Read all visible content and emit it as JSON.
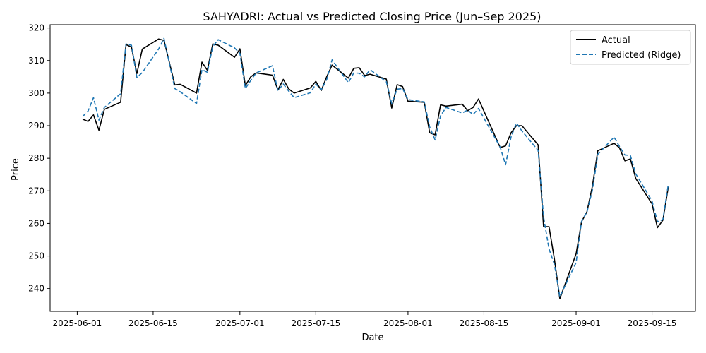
{
  "chart_data": {
    "type": "line",
    "title": "SAHYADRI: Actual vs Predicted Closing Price (Jun–Sep 2025)",
    "xlabel": "Date",
    "ylabel": "Price",
    "xlim": [
      "2025-05-27",
      "2025-09-23"
    ],
    "ylim": [
      233,
      321
    ],
    "x_ticks": [
      "2025-06-01",
      "2025-06-15",
      "2025-07-01",
      "2025-07-15",
      "2025-08-01",
      "2025-08-15",
      "2025-09-01",
      "2025-09-15"
    ],
    "y_ticks": [
      240,
      250,
      260,
      270,
      280,
      290,
      300,
      310,
      320
    ],
    "grid": false,
    "legend_position": "top-right",
    "series": [
      {
        "name": "Actual",
        "color": "#000000",
        "style": "solid",
        "points": [
          [
            "2025-06-02",
            292.0
          ],
          [
            "2025-06-03",
            291.3
          ],
          [
            "2025-06-04",
            293.3
          ],
          [
            "2025-06-05",
            288.6
          ],
          [
            "2025-06-06",
            295.0
          ],
          [
            "2025-06-09",
            297.2
          ],
          [
            "2025-06-10",
            314.9
          ],
          [
            "2025-06-11",
            314.1
          ],
          [
            "2025-06-12",
            306.0
          ],
          [
            "2025-06-13",
            313.5
          ],
          [
            "2025-06-16",
            316.6
          ],
          [
            "2025-06-17",
            316.2
          ],
          [
            "2025-06-19",
            302.5
          ],
          [
            "2025-06-20",
            302.7
          ],
          [
            "2025-06-23",
            300.0
          ],
          [
            "2025-06-24",
            309.5
          ],
          [
            "2025-06-25",
            307.0
          ],
          [
            "2025-06-26",
            315.1
          ],
          [
            "2025-06-27",
            314.7
          ],
          [
            "2025-06-30",
            311.0
          ],
          [
            "2025-07-01",
            313.6
          ],
          [
            "2025-07-02",
            302.3
          ],
          [
            "2025-07-03",
            305.0
          ],
          [
            "2025-07-04",
            306.2
          ],
          [
            "2025-07-07",
            305.5
          ],
          [
            "2025-07-08",
            301.0
          ],
          [
            "2025-07-09",
            304.2
          ],
          [
            "2025-07-10",
            301.3
          ],
          [
            "2025-07-11",
            300.0
          ],
          [
            "2025-07-14",
            301.6
          ],
          [
            "2025-07-15",
            303.6
          ],
          [
            "2025-07-16",
            300.8
          ],
          [
            "2025-07-17",
            305.0
          ],
          [
            "2025-07-18",
            308.6
          ],
          [
            "2025-07-21",
            304.6
          ],
          [
            "2025-07-22",
            307.6
          ],
          [
            "2025-07-23",
            307.8
          ],
          [
            "2025-07-24",
            305.4
          ],
          [
            "2025-07-25",
            305.8
          ],
          [
            "2025-07-28",
            304.3
          ],
          [
            "2025-07-29",
            295.4
          ],
          [
            "2025-07-30",
            302.6
          ],
          [
            "2025-07-31",
            302.0
          ],
          [
            "2025-08-01",
            297.5
          ],
          [
            "2025-08-04",
            297.2
          ],
          [
            "2025-08-05",
            287.8
          ],
          [
            "2025-08-06",
            287.2
          ],
          [
            "2025-08-07",
            296.4
          ],
          [
            "2025-08-08",
            296.0
          ],
          [
            "2025-08-11",
            296.6
          ],
          [
            "2025-08-12",
            294.6
          ],
          [
            "2025-08-13",
            295.6
          ],
          [
            "2025-08-14",
            298.2
          ],
          [
            "2025-08-18",
            283.3
          ],
          [
            "2025-08-19",
            283.8
          ],
          [
            "2025-08-20",
            287.8
          ],
          [
            "2025-08-21",
            290.0
          ],
          [
            "2025-08-22",
            290.0
          ],
          [
            "2025-08-25",
            284.1
          ],
          [
            "2025-08-26",
            259.0
          ],
          [
            "2025-08-27",
            259.0
          ],
          [
            "2025-08-28",
            249.0
          ],
          [
            "2025-08-29",
            236.9
          ],
          [
            "2025-09-01",
            250.7
          ],
          [
            "2025-09-02",
            260.5
          ],
          [
            "2025-09-03",
            263.6
          ],
          [
            "2025-09-04",
            271.4
          ],
          [
            "2025-09-05",
            282.3
          ],
          [
            "2025-09-08",
            284.6
          ],
          [
            "2025-09-09",
            283.2
          ],
          [
            "2025-09-10",
            279.2
          ],
          [
            "2025-09-11",
            279.8
          ],
          [
            "2025-09-12",
            273.8
          ],
          [
            "2025-09-15",
            266.0
          ],
          [
            "2025-09-16",
            258.7
          ],
          [
            "2025-09-17",
            261.0
          ],
          [
            "2025-09-18",
            271.2
          ]
        ]
      },
      {
        "name": "Predicted (Ridge)",
        "color": "#1f77b4",
        "style": "dashed",
        "points": [
          [
            "2025-06-02",
            292.8
          ],
          [
            "2025-06-03",
            294.5
          ],
          [
            "2025-06-04",
            298.6
          ],
          [
            "2025-06-05",
            291.7
          ],
          [
            "2025-06-06",
            295.6
          ],
          [
            "2025-06-09",
            299.8
          ],
          [
            "2025-06-10",
            315.1
          ],
          [
            "2025-06-11",
            314.7
          ],
          [
            "2025-06-12",
            304.8
          ],
          [
            "2025-06-13",
            306.3
          ],
          [
            "2025-06-16",
            313.5
          ],
          [
            "2025-06-17",
            316.8
          ],
          [
            "2025-06-19",
            301.4
          ],
          [
            "2025-06-20",
            300.4
          ],
          [
            "2025-06-23",
            296.8
          ],
          [
            "2025-06-24",
            307.2
          ],
          [
            "2025-06-25",
            306.4
          ],
          [
            "2025-06-26",
            314.3
          ],
          [
            "2025-06-27",
            316.4
          ],
          [
            "2025-06-30",
            313.9
          ],
          [
            "2025-07-01",
            312.2
          ],
          [
            "2025-07-02",
            301.4
          ],
          [
            "2025-07-03",
            303.9
          ],
          [
            "2025-07-04",
            306.2
          ],
          [
            "2025-07-07",
            308.4
          ],
          [
            "2025-07-08",
            300.7
          ],
          [
            "2025-07-09",
            302.8
          ],
          [
            "2025-07-10",
            300.6
          ],
          [
            "2025-07-11",
            298.6
          ],
          [
            "2025-07-14",
            300.1
          ],
          [
            "2025-07-15",
            302.8
          ],
          [
            "2025-07-16",
            301.0
          ],
          [
            "2025-07-17",
            304.1
          ],
          [
            "2025-07-18",
            310.2
          ],
          [
            "2025-07-21",
            303.2
          ],
          [
            "2025-07-22",
            306.2
          ],
          [
            "2025-07-23",
            306.1
          ],
          [
            "2025-07-24",
            305.0
          ],
          [
            "2025-07-25",
            307.2
          ],
          [
            "2025-07-28",
            303.5
          ],
          [
            "2025-07-29",
            296.8
          ],
          [
            "2025-07-30",
            301.2
          ],
          [
            "2025-07-31",
            301.4
          ],
          [
            "2025-08-01",
            298.0
          ],
          [
            "2025-08-04",
            297.3
          ],
          [
            "2025-08-05",
            289.6
          ],
          [
            "2025-08-06",
            285.6
          ],
          [
            "2025-08-07",
            293.0
          ],
          [
            "2025-08-08",
            295.6
          ],
          [
            "2025-08-11",
            293.9
          ],
          [
            "2025-08-12",
            294.8
          ],
          [
            "2025-08-13",
            293.4
          ],
          [
            "2025-08-14",
            295.3
          ],
          [
            "2025-08-18",
            283.4
          ],
          [
            "2025-08-19",
            278.0
          ],
          [
            "2025-08-20",
            286.5
          ],
          [
            "2025-08-21",
            290.8
          ],
          [
            "2025-08-22",
            288.4
          ],
          [
            "2025-08-25",
            282.4
          ],
          [
            "2025-08-26",
            262.0
          ],
          [
            "2025-08-27",
            252.2
          ],
          [
            "2025-08-28",
            247.4
          ],
          [
            "2025-08-29",
            237.5
          ],
          [
            "2025-09-01",
            248.0
          ],
          [
            "2025-09-02",
            260.6
          ],
          [
            "2025-09-03",
            263.5
          ],
          [
            "2025-09-04",
            270.2
          ],
          [
            "2025-09-05",
            281.2
          ],
          [
            "2025-09-08",
            286.5
          ],
          [
            "2025-09-09",
            283.6
          ],
          [
            "2025-09-10",
            281.0
          ],
          [
            "2025-09-11",
            280.9
          ],
          [
            "2025-09-12",
            275.2
          ],
          [
            "2025-09-15",
            266.9
          ],
          [
            "2025-09-16",
            260.5
          ],
          [
            "2025-09-17",
            261.2
          ],
          [
            "2025-09-18",
            272.0
          ]
        ]
      }
    ]
  }
}
